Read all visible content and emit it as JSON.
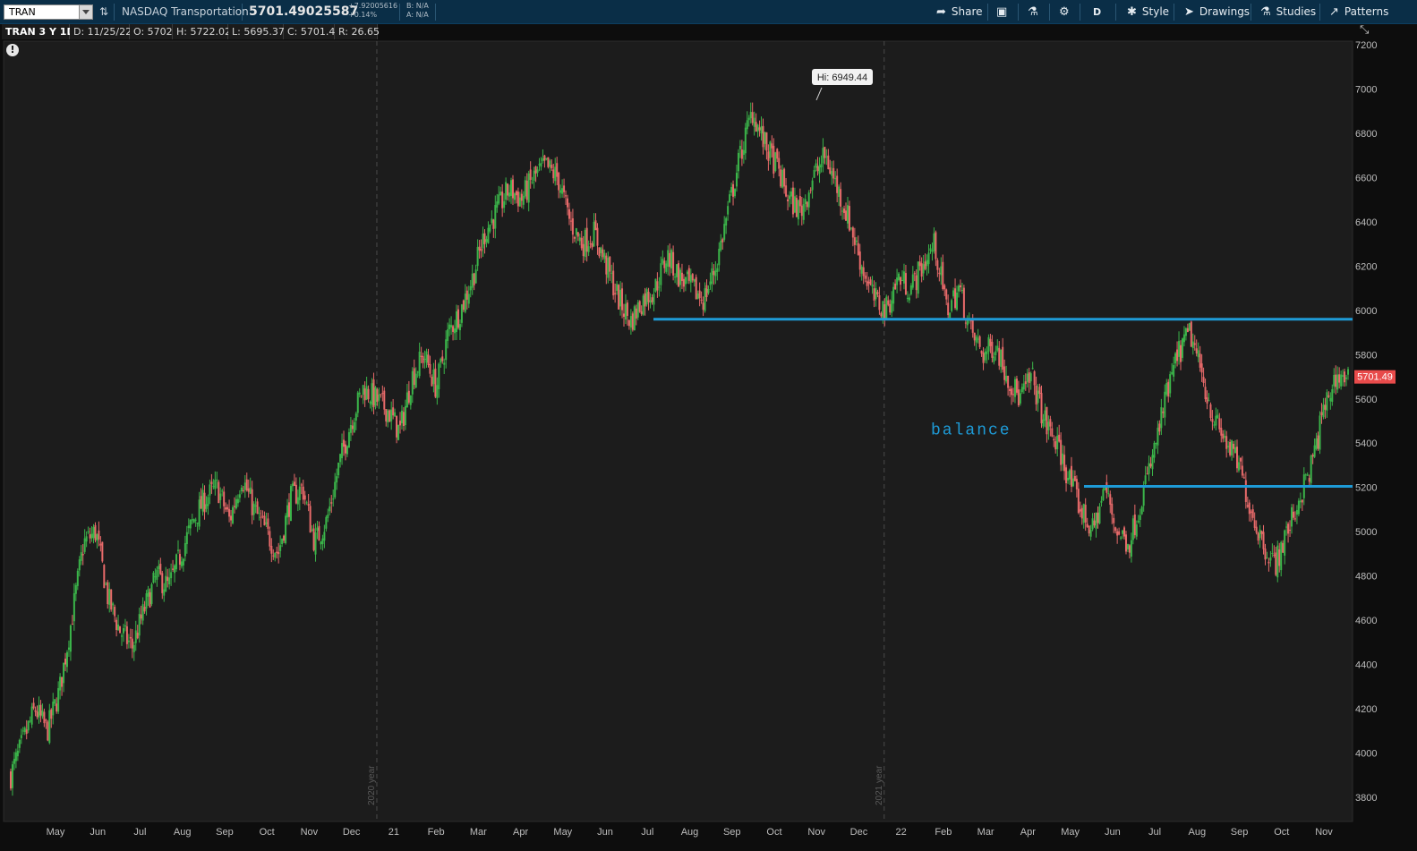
{
  "toolbar": {
    "symbol": "TRAN",
    "description": "NASDAQ Transportation",
    "last_price": "5701.49025587",
    "net_change": "+7.92005616",
    "pct_change": "+0.14%",
    "bid": "B: N/A",
    "ask": "A: N/A",
    "share_label": "Share",
    "aggregation_label": "D",
    "style_label": "Style",
    "drawings_label": "Drawings",
    "studies_label": "Studies",
    "patterns_label": "Patterns"
  },
  "infobar": {
    "title": "TRAN 3 Y 1D",
    "date": "D: 11/25/22",
    "open": "O: 5702",
    "high": "H: 5722.02",
    "low": "L: 5695.37",
    "close": "C: 5701.49",
    "range": "R: 26.65"
  },
  "chart_data": {
    "type": "candlestick",
    "title": "",
    "ylim": [
      3700,
      7250
    ],
    "y_ticks": [
      3800,
      4000,
      4200,
      4400,
      4600,
      4800,
      5000,
      5200,
      5400,
      5600,
      5800,
      6000,
      6200,
      6400,
      6600,
      6800,
      7000,
      7200
    ],
    "x_ticks": [
      "May",
      "Jun",
      "Jul",
      "Aug",
      "Sep",
      "Oct",
      "Nov",
      "Dec",
      "21",
      "Feb",
      "Mar",
      "Apr",
      "May",
      "Jun",
      "Jul",
      "Aug",
      "Sep",
      "Oct",
      "Nov",
      "Dec",
      "22",
      "Feb",
      "Mar",
      "Apr",
      "May",
      "Jun",
      "Jul",
      "Aug",
      "Sep",
      "Oct",
      "Nov"
    ],
    "year_markers": [
      "2020 year",
      "2021 year"
    ],
    "high_label": "Hi: 6949.44",
    "high_value": 6949.44,
    "last_price_label": "5701.49",
    "last_price_value": 5701.49,
    "horizontal_lines": [
      {
        "value": 5960,
        "start_month": "Jul 2021",
        "color": "#1e9bd7"
      },
      {
        "value": 5205,
        "start_month": "May 2022",
        "color": "#1e9bd7"
      }
    ],
    "annotation": "balance",
    "series": [
      {
        "values": [
          3900,
          4050,
          4200,
          4100,
          4280,
          4600,
          4950,
          5000,
          4700,
          4550,
          4480,
          4650,
          4800,
          4750,
          4900,
          5050,
          5150,
          5200,
          5050,
          5250,
          5100,
          5000,
          4900,
          5150,
          5200,
          4950,
          5050,
          5300,
          5500,
          5650,
          5600,
          5550,
          5450,
          5700,
          5800,
          5650,
          5900,
          6000,
          6150,
          6350,
          6450,
          6550,
          6500,
          6600,
          6650,
          6600,
          6400,
          6300,
          6350,
          6200,
          6050,
          5950,
          6050,
          6100,
          6250,
          6150,
          6100,
          6050,
          6200,
          6450,
          6700,
          6900,
          6750,
          6650,
          6500,
          6450,
          6600,
          6700,
          6550,
          6400,
          6200,
          6050,
          6000,
          6150,
          6100,
          6200,
          6300,
          6000,
          6100,
          5900,
          5800,
          5850,
          5700,
          5600,
          5700,
          5500,
          5400,
          5250,
          5100,
          5000,
          5200,
          5000,
          4950,
          5150,
          5350,
          5600,
          5800,
          5900,
          5700,
          5500,
          5400,
          5300,
          5100,
          4950,
          4850,
          5000,
          5150,
          5300,
          5550,
          5700,
          5701.49
        ]
      }
    ]
  }
}
